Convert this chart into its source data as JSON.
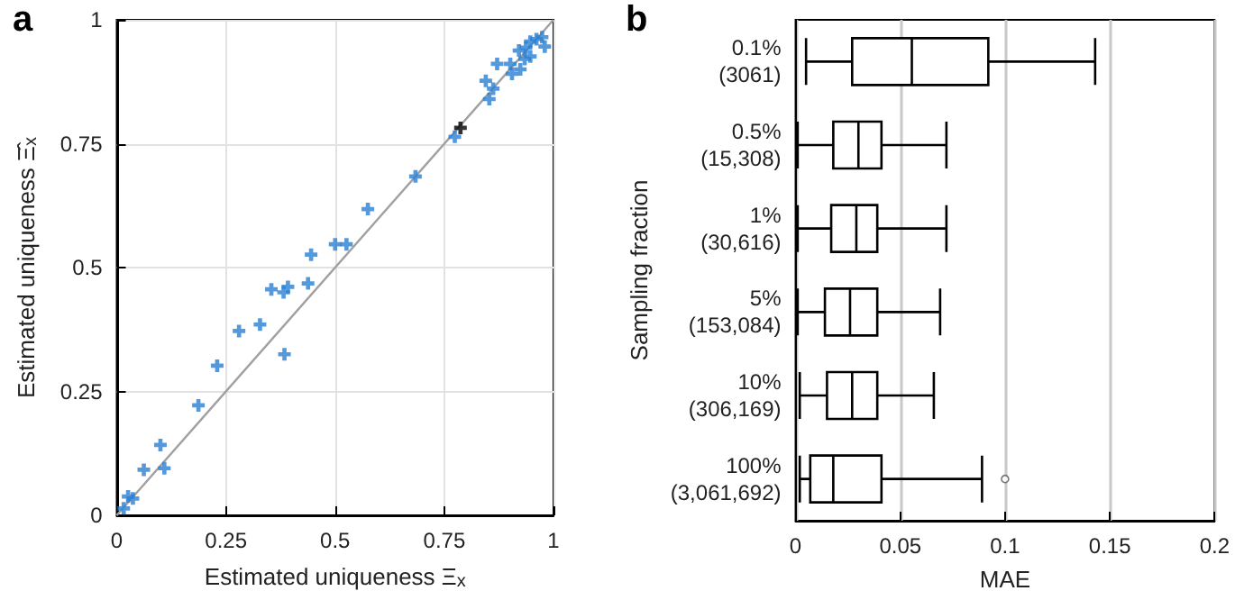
{
  "chart_data": [
    {
      "type": "scatter",
      "title": "a",
      "xlabel": "Estimated uniqueness Ξ$_{x}$",
      "ylabel": "Estimated uniqueness Ξ̂$_{x}$",
      "xlim": [
        0,
        1
      ],
      "ylim": [
        0,
        1
      ],
      "xticks": [
        0,
        0.25,
        0.5,
        0.75,
        1
      ],
      "yticks": [
        0,
        0.25,
        0.5,
        0.75,
        1
      ],
      "grid": true,
      "marker": "cross",
      "series": [
        {
          "color": "#2a7fd4",
          "x": [
            0.016,
            0.026,
            0.037,
            0.062,
            0.1,
            0.109,
            0.187,
            0.23,
            0.28,
            0.328,
            0.354,
            0.382,
            0.392,
            0.384,
            0.438,
            0.445,
            0.5,
            0.526,
            0.575,
            0.684,
            0.774,
            0.853,
            0.845,
            0.862,
            0.871,
            0.901,
            0.934,
            0.905,
            0.924,
            0.921,
            0.937,
            0.947,
            0.961,
            0.974,
            0.947,
            0.98
          ],
          "values": [
            0.014,
            0.038,
            0.034,
            0.092,
            0.142,
            0.095,
            0.222,
            0.302,
            0.372,
            0.385,
            0.456,
            0.45,
            0.461,
            0.325,
            0.468,
            0.526,
            0.547,
            0.547,
            0.618,
            0.684,
            0.764,
            0.84,
            0.877,
            0.861,
            0.911,
            0.911,
            0.921,
            0.891,
            0.9,
            0.938,
            0.944,
            0.956,
            0.961,
            0.965,
            0.926,
            0.946
          ]
        },
        {
          "color": "#000000",
          "x": [
            0.787
          ],
          "values": [
            0.782
          ]
        },
        {
          "type": "line",
          "marker": "none",
          "color": "#a0a0a0",
          "x": [
            0,
            1
          ],
          "values": [
            0,
            1
          ]
        }
      ]
    },
    {
      "type": "box",
      "title": "b",
      "xlabel": "MAE",
      "ylabel": "Sampling fraction",
      "orientation": "horizontal",
      "xlim": [
        0,
        0.2
      ],
      "xticks": [
        0,
        0.05,
        0.1,
        0.15,
        0.2
      ],
      "grid": "x",
      "categories": [
        "0.1%\n(3061)",
        "0.5%\n(15,308)",
        "1%\n(30,616)",
        "5%\n(153,084)",
        "10%\n(306,169)",
        "100%\n(3,061,692)"
      ],
      "boxes": [
        {
          "low": 0.005,
          "q1": 0.027,
          "median": 0.0555,
          "q3": 0.092,
          "high": 0.143
        },
        {
          "low": 0.001,
          "q1": 0.018,
          "median": 0.03,
          "q3": 0.041,
          "high": 0.072
        },
        {
          "low": 0.001,
          "q1": 0.017,
          "median": 0.029,
          "q3": 0.039,
          "high": 0.072
        },
        {
          "low": 0.001,
          "q1": 0.014,
          "median": 0.026,
          "q3": 0.039,
          "high": 0.069
        },
        {
          "low": 0.002,
          "q1": 0.015,
          "median": 0.027,
          "q3": 0.039,
          "high": 0.066
        },
        {
          "low": 0.002,
          "q1": 0.007,
          "median": 0.018,
          "q3": 0.041,
          "high": 0.089,
          "outliers": [
            0.1
          ]
        }
      ]
    }
  ]
}
